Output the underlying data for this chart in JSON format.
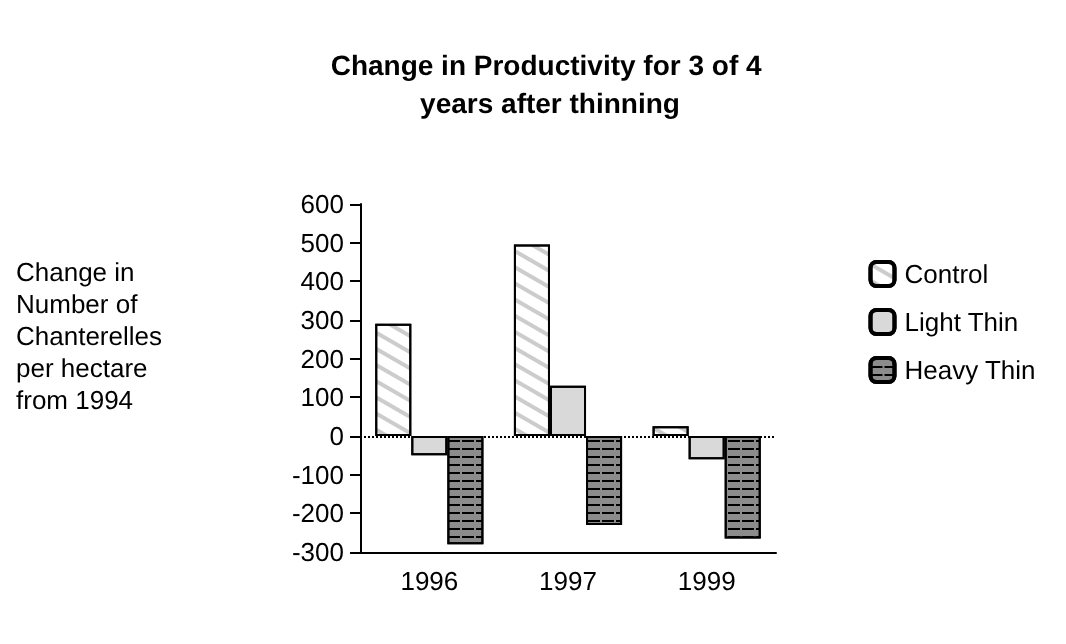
{
  "chart_data": {
    "type": "bar",
    "title": "Change in Productivity for 3 of 4 years after thinning",
    "ylabel": "Change in Number of Chanterelles per hectare from 1994",
    "categories": [
      "1996",
      "1997",
      "1999"
    ],
    "series": [
      {
        "name": "Control",
        "color": "#ffffff",
        "values": [
          290,
          495,
          25
        ]
      },
      {
        "name": "Light Thin",
        "color": "#d9d9d9",
        "values": [
          -50,
          130,
          -60
        ]
      },
      {
        "name": "Heavy Thin",
        "color": "#8c8c8c",
        "values": [
          -280,
          -230,
          -265
        ]
      }
    ],
    "ylim": [
      -300,
      600
    ],
    "yticks": [
      -300,
      -200,
      -100,
      0,
      100,
      200,
      300,
      400,
      500,
      600
    ],
    "ref_lines": [
      {
        "axis": "y",
        "value": 0,
        "line_style": "dotted",
        "color": "#000000"
      }
    ],
    "grid": false,
    "legend": "right"
  }
}
